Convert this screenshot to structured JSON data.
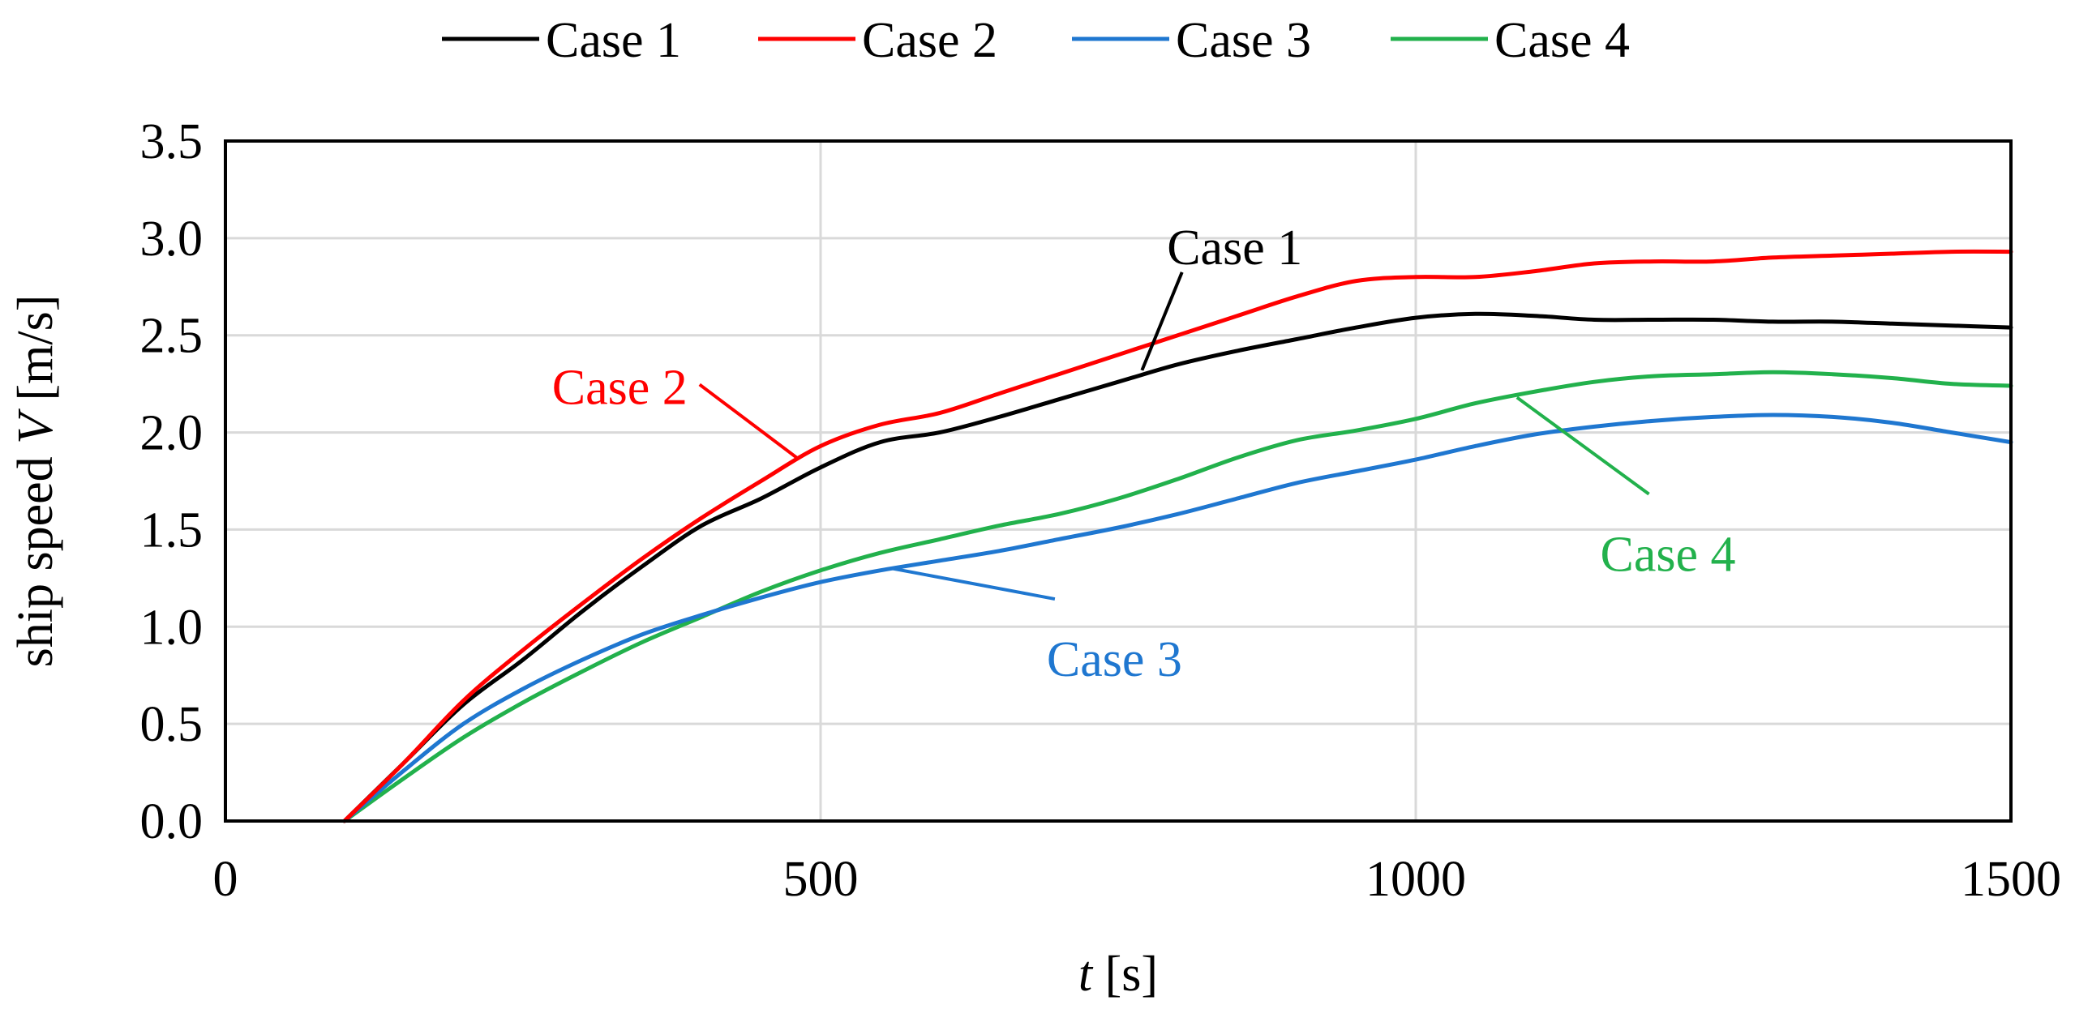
{
  "chart_data": {
    "type": "line",
    "xlabel": {
      "italic": "t",
      "rest": " [s]"
    },
    "ylabel": {
      "prefix": "ship speed ",
      "italic": "V",
      "suffix": " [m/s]"
    },
    "xlim": [
      0,
      1500
    ],
    "ylim": [
      0,
      3.5
    ],
    "x_ticks": [
      0,
      500,
      1000,
      1500
    ],
    "x_tick_labels": [
      "0",
      "500",
      "1000",
      "1500"
    ],
    "y_ticks": [
      0,
      0.5,
      1.0,
      1.5,
      2.0,
      2.5,
      3.0,
      3.5
    ],
    "y_tick_labels": [
      "0.0",
      "0.5",
      "1.0",
      "1.5",
      "2.0",
      "2.5",
      "3.0",
      "3.5"
    ],
    "grid": {
      "horizontal": true,
      "vertical": true
    },
    "legend": {
      "position": "top"
    },
    "series": [
      {
        "name": "Case 1",
        "color": "#000000",
        "x": [
          100,
          150,
          200,
          250,
          300,
          350,
          400,
          450,
          500,
          550,
          600,
          650,
          700,
          750,
          800,
          850,
          900,
          950,
          1000,
          1050,
          1100,
          1150,
          1200,
          1250,
          1300,
          1350,
          1400,
          1450,
          1500
        ],
        "y": [
          0.0,
          0.3,
          0.6,
          0.83,
          1.08,
          1.31,
          1.52,
          1.66,
          1.82,
          1.95,
          2.0,
          2.08,
          2.17,
          2.26,
          2.35,
          2.42,
          2.48,
          2.54,
          2.59,
          2.61,
          2.6,
          2.58,
          2.58,
          2.58,
          2.57,
          2.57,
          2.56,
          2.55,
          2.54
        ]
      },
      {
        "name": "Case 2",
        "color": "#ff0000",
        "x": [
          100,
          150,
          200,
          250,
          300,
          350,
          400,
          450,
          500,
          550,
          600,
          650,
          700,
          750,
          800,
          850,
          900,
          950,
          1000,
          1050,
          1100,
          1150,
          1200,
          1250,
          1300,
          1350,
          1400,
          1450,
          1500
        ],
        "y": [
          0.0,
          0.3,
          0.62,
          0.88,
          1.12,
          1.35,
          1.56,
          1.75,
          1.93,
          2.04,
          2.1,
          2.2,
          2.3,
          2.4,
          2.5,
          2.6,
          2.7,
          2.78,
          2.8,
          2.8,
          2.83,
          2.87,
          2.88,
          2.88,
          2.9,
          2.91,
          2.92,
          2.93,
          2.93
        ]
      },
      {
        "name": "Case 3",
        "color": "#1f77d0",
        "x": [
          100,
          150,
          200,
          250,
          300,
          350,
          400,
          450,
          500,
          550,
          600,
          650,
          700,
          750,
          800,
          850,
          900,
          950,
          1000,
          1050,
          1100,
          1150,
          1200,
          1250,
          1300,
          1350,
          1400,
          1450,
          1500
        ],
        "y": [
          0.0,
          0.26,
          0.5,
          0.68,
          0.83,
          0.96,
          1.06,
          1.15,
          1.23,
          1.29,
          1.34,
          1.39,
          1.45,
          1.51,
          1.58,
          1.66,
          1.74,
          1.8,
          1.86,
          1.93,
          1.99,
          2.03,
          2.06,
          2.08,
          2.09,
          2.08,
          2.05,
          2.0,
          1.95
        ]
      },
      {
        "name": "Case 4",
        "color": "#22b14c",
        "x": [
          100,
          150,
          200,
          250,
          300,
          350,
          400,
          450,
          500,
          550,
          600,
          650,
          700,
          750,
          800,
          850,
          900,
          950,
          1000,
          1050,
          1100,
          1150,
          1200,
          1250,
          1300,
          1350,
          1400,
          1450,
          1500
        ],
        "y": [
          0.0,
          0.22,
          0.43,
          0.61,
          0.77,
          0.92,
          1.05,
          1.18,
          1.29,
          1.38,
          1.45,
          1.52,
          1.58,
          1.66,
          1.76,
          1.87,
          1.96,
          2.01,
          2.07,
          2.15,
          2.21,
          2.26,
          2.29,
          2.3,
          2.31,
          2.3,
          2.28,
          2.25,
          2.24
        ]
      }
    ],
    "annotations": [
      {
        "text": "Case 1",
        "series": "Case 1",
        "color": "#000000",
        "point_x": 770,
        "point_y": 2.32,
        "label_x": 790,
        "label_y": 2.95
      },
      {
        "text": "Case 2",
        "series": "Case 2",
        "color": "#ff0000",
        "point_x": 480,
        "point_y": 1.87,
        "label_x": 320,
        "label_y": 2.23
      },
      {
        "text": "Case 3",
        "series": "Case 3",
        "color": "#1f77d0",
        "point_x": 560,
        "point_y": 1.3,
        "label_x": 690,
        "label_y": 0.83
      },
      {
        "text": "Case 4",
        "series": "Case 4",
        "color": "#22b14c",
        "point_x": 1085,
        "point_y": 2.18,
        "label_x": 1155,
        "label_y": 1.37
      }
    ]
  }
}
